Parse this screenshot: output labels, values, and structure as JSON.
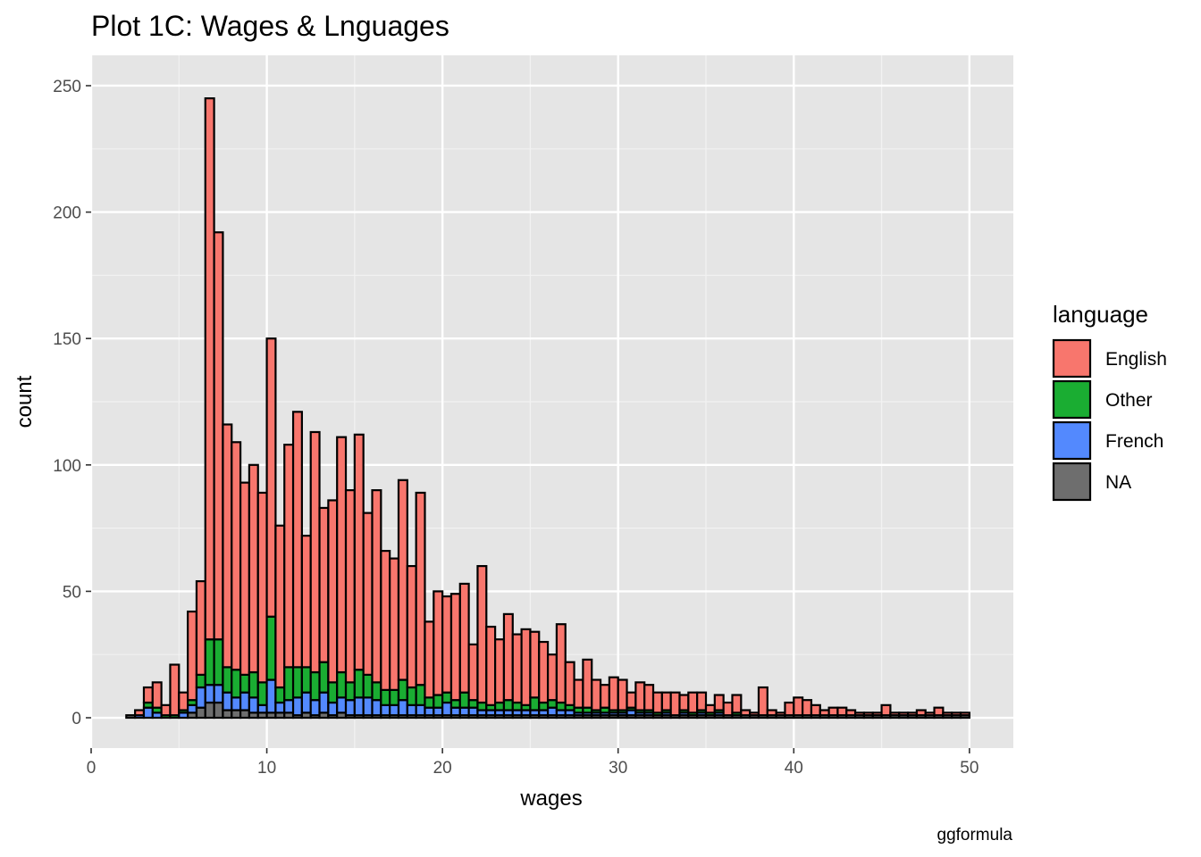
{
  "chart_data": {
    "type": "bar",
    "stacked": true,
    "title": "Plot 1C: Wages & Lnguages",
    "xlabel": "wages",
    "ylabel": "count",
    "caption": "ggformula",
    "xlim": [
      0,
      52.5
    ],
    "ylim": [
      -12,
      262
    ],
    "xticks": [
      0,
      10,
      20,
      30,
      40,
      50
    ],
    "yticks": [
      0,
      50,
      100,
      150,
      200,
      250
    ],
    "grid": true,
    "background": "#e5e5e5",
    "legend": {
      "title": "language",
      "position": "right"
    },
    "bin_width": 0.5,
    "x": [
      2.25,
      2.75,
      3.25,
      3.75,
      4.25,
      4.75,
      5.25,
      5.75,
      6.25,
      6.75,
      7.25,
      7.75,
      8.25,
      8.75,
      9.25,
      9.75,
      10.25,
      10.75,
      11.25,
      11.75,
      12.25,
      12.75,
      13.25,
      13.75,
      14.25,
      14.75,
      15.25,
      15.75,
      16.25,
      16.75,
      17.25,
      17.75,
      18.25,
      18.75,
      19.25,
      19.75,
      20.25,
      20.75,
      21.25,
      21.75,
      22.25,
      22.75,
      23.25,
      23.75,
      24.25,
      24.75,
      25.25,
      25.75,
      26.25,
      26.75,
      27.25,
      27.75,
      28.25,
      28.75,
      29.25,
      29.75,
      30.25,
      30.75,
      31.25,
      31.75,
      32.25,
      32.75,
      33.25,
      33.75,
      34.25,
      34.75,
      35.25,
      35.75,
      36.25,
      36.75,
      37.25,
      37.75,
      38.25,
      38.75,
      39.25,
      39.75,
      40.25,
      40.75,
      41.25,
      41.75,
      42.25,
      42.75,
      43.25,
      43.75,
      44.25,
      44.75,
      45.25,
      45.75,
      46.25,
      46.75,
      47.25,
      47.75,
      48.25,
      48.75,
      49.25,
      49.75
    ],
    "series": [
      {
        "name": "English",
        "color": "#f8766d",
        "values": [
          0,
          2,
          6,
          10,
          4,
          20,
          7,
          35,
          37,
          214,
          161,
          96,
          90,
          76,
          82,
          75,
          110,
          64,
          88,
          101,
          52,
          95,
          61,
          72,
          93,
          76,
          93,
          64,
          76,
          55,
          52,
          79,
          48,
          76,
          30,
          41,
          38,
          42,
          43,
          22,
          54,
          31,
          25,
          34,
          27,
          30,
          26,
          24,
          18,
          31,
          17,
          11,
          19,
          12,
          9,
          13,
          12,
          6,
          11,
          10,
          8,
          7,
          9,
          6,
          8,
          7,
          3,
          6,
          5,
          7,
          2,
          1,
          11,
          2,
          1,
          5,
          7,
          6,
          4,
          2,
          3,
          3,
          2,
          1,
          1,
          1,
          4,
          1,
          1,
          1,
          2,
          1,
          3,
          1,
          1,
          1
        ]
      },
      {
        "name": "Other",
        "color": "#1aad32",
        "values": [
          0,
          0,
          2,
          2,
          1,
          1,
          1,
          2,
          5,
          18,
          18,
          10,
          11,
          7,
          10,
          9,
          25,
          6,
          13,
          12,
          10,
          11,
          12,
          8,
          10,
          7,
          11,
          9,
          7,
          6,
          6,
          8,
          7,
          8,
          4,
          5,
          4,
          3,
          6,
          3,
          3,
          2,
          3,
          4,
          3,
          2,
          5,
          3,
          3,
          3,
          2,
          2,
          2,
          1,
          2,
          1,
          1,
          1,
          1,
          1,
          1,
          1,
          0,
          1,
          1,
          1,
          1,
          1,
          0,
          1,
          0,
          0,
          0,
          0,
          0,
          0,
          0,
          0,
          0,
          0,
          0,
          0,
          0,
          0,
          0,
          0,
          0,
          0,
          0,
          0,
          0,
          0,
          0,
          0,
          0,
          0
        ]
      },
      {
        "name": "French",
        "color": "#5389fe",
        "values": [
          0,
          1,
          4,
          2,
          0,
          0,
          2,
          3,
          8,
          7,
          7,
          7,
          5,
          7,
          6,
          3,
          13,
          4,
          5,
          7,
          8,
          6,
          8,
          5,
          6,
          6,
          7,
          7,
          6,
          4,
          4,
          6,
          4,
          4,
          3,
          3,
          5,
          3,
          3,
          3,
          2,
          2,
          2,
          2,
          2,
          2,
          2,
          2,
          3,
          2,
          2,
          1,
          1,
          1,
          1,
          1,
          1,
          2,
          1,
          1,
          0,
          1,
          0,
          1,
          0,
          1,
          0,
          1,
          0,
          0,
          0,
          0,
          0,
          0,
          0,
          0,
          0,
          0,
          0,
          0,
          0,
          0,
          0,
          0,
          0,
          0,
          0,
          0,
          0,
          0,
          0,
          0,
          0,
          0,
          0,
          0
        ]
      },
      {
        "name": "NA",
        "color": "#6e6e6e",
        "values": [
          1,
          0,
          0,
          0,
          0,
          0,
          0,
          2,
          4,
          6,
          6,
          3,
          3,
          3,
          2,
          2,
          2,
          2,
          2,
          1,
          2,
          1,
          2,
          1,
          2,
          1,
          1,
          1,
          1,
          1,
          1,
          1,
          1,
          1,
          1,
          1,
          1,
          1,
          1,
          1,
          1,
          1,
          1,
          1,
          1,
          1,
          1,
          1,
          1,
          1,
          1,
          1,
          1,
          1,
          1,
          1,
          1,
          1,
          1,
          1,
          1,
          1,
          1,
          1,
          1,
          1,
          1,
          1,
          1,
          1,
          1,
          1,
          1,
          1,
          1,
          1,
          1,
          1,
          1,
          1,
          1,
          1,
          1,
          1,
          1,
          1,
          1,
          1,
          1,
          1,
          1,
          1,
          1,
          1,
          1,
          1
        ]
      }
    ]
  }
}
